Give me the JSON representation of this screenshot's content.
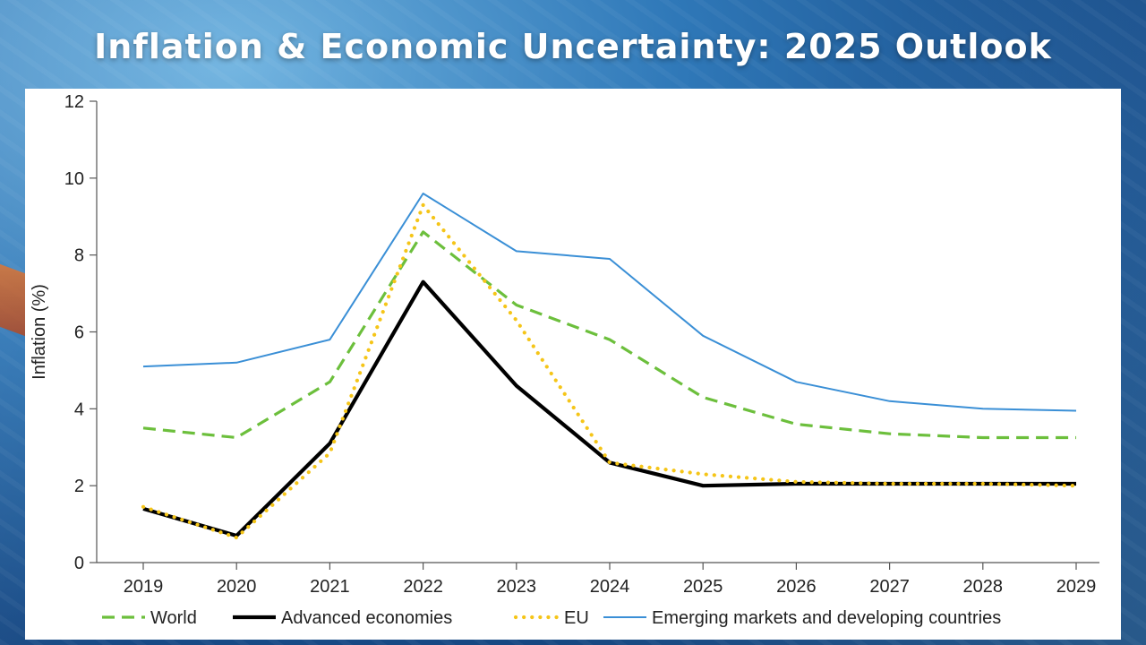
{
  "page": {
    "title": "Inflation & Economic Uncertainty: 2025 Outlook"
  },
  "colors": {
    "world": "#6cbf3c",
    "advanced": "#000000",
    "eu": "#f5c518",
    "emerging": "#3a8fd6",
    "axis": "#555555"
  },
  "chart_data": {
    "type": "line",
    "title": "",
    "xlabel": "",
    "ylabel": "Inflation (%)",
    "ylim": [
      0,
      12
    ],
    "yticks": [
      "0",
      "2",
      "4",
      "6",
      "8",
      "10",
      "12"
    ],
    "x": [
      "2019",
      "2020",
      "2021",
      "2022",
      "2023",
      "2024",
      "2025",
      "2026",
      "2027",
      "2028",
      "2029"
    ],
    "series": [
      {
        "key": "world",
        "name": "World",
        "style": "dashed",
        "values": [
          3.5,
          3.25,
          4.7,
          8.6,
          6.7,
          5.8,
          4.3,
          3.6,
          3.35,
          3.25,
          3.25
        ]
      },
      {
        "key": "advanced",
        "name": "Advanced economies",
        "style": "solid-thick",
        "values": [
          1.4,
          0.7,
          3.1,
          7.3,
          4.6,
          2.6,
          2.0,
          2.05,
          2.05,
          2.05,
          2.05
        ]
      },
      {
        "key": "eu",
        "name": "EU",
        "style": "dotted",
        "values": [
          1.45,
          0.65,
          2.85,
          9.3,
          6.3,
          2.6,
          2.3,
          2.1,
          2.05,
          2.05,
          2.0
        ]
      },
      {
        "key": "emerging",
        "name": "Emerging markets and developing countries",
        "style": "solid-thin",
        "values": [
          5.1,
          5.2,
          5.8,
          9.6,
          8.1,
          7.9,
          5.9,
          4.7,
          4.2,
          4.0,
          3.95
        ]
      }
    ],
    "legend_position": "bottom"
  }
}
